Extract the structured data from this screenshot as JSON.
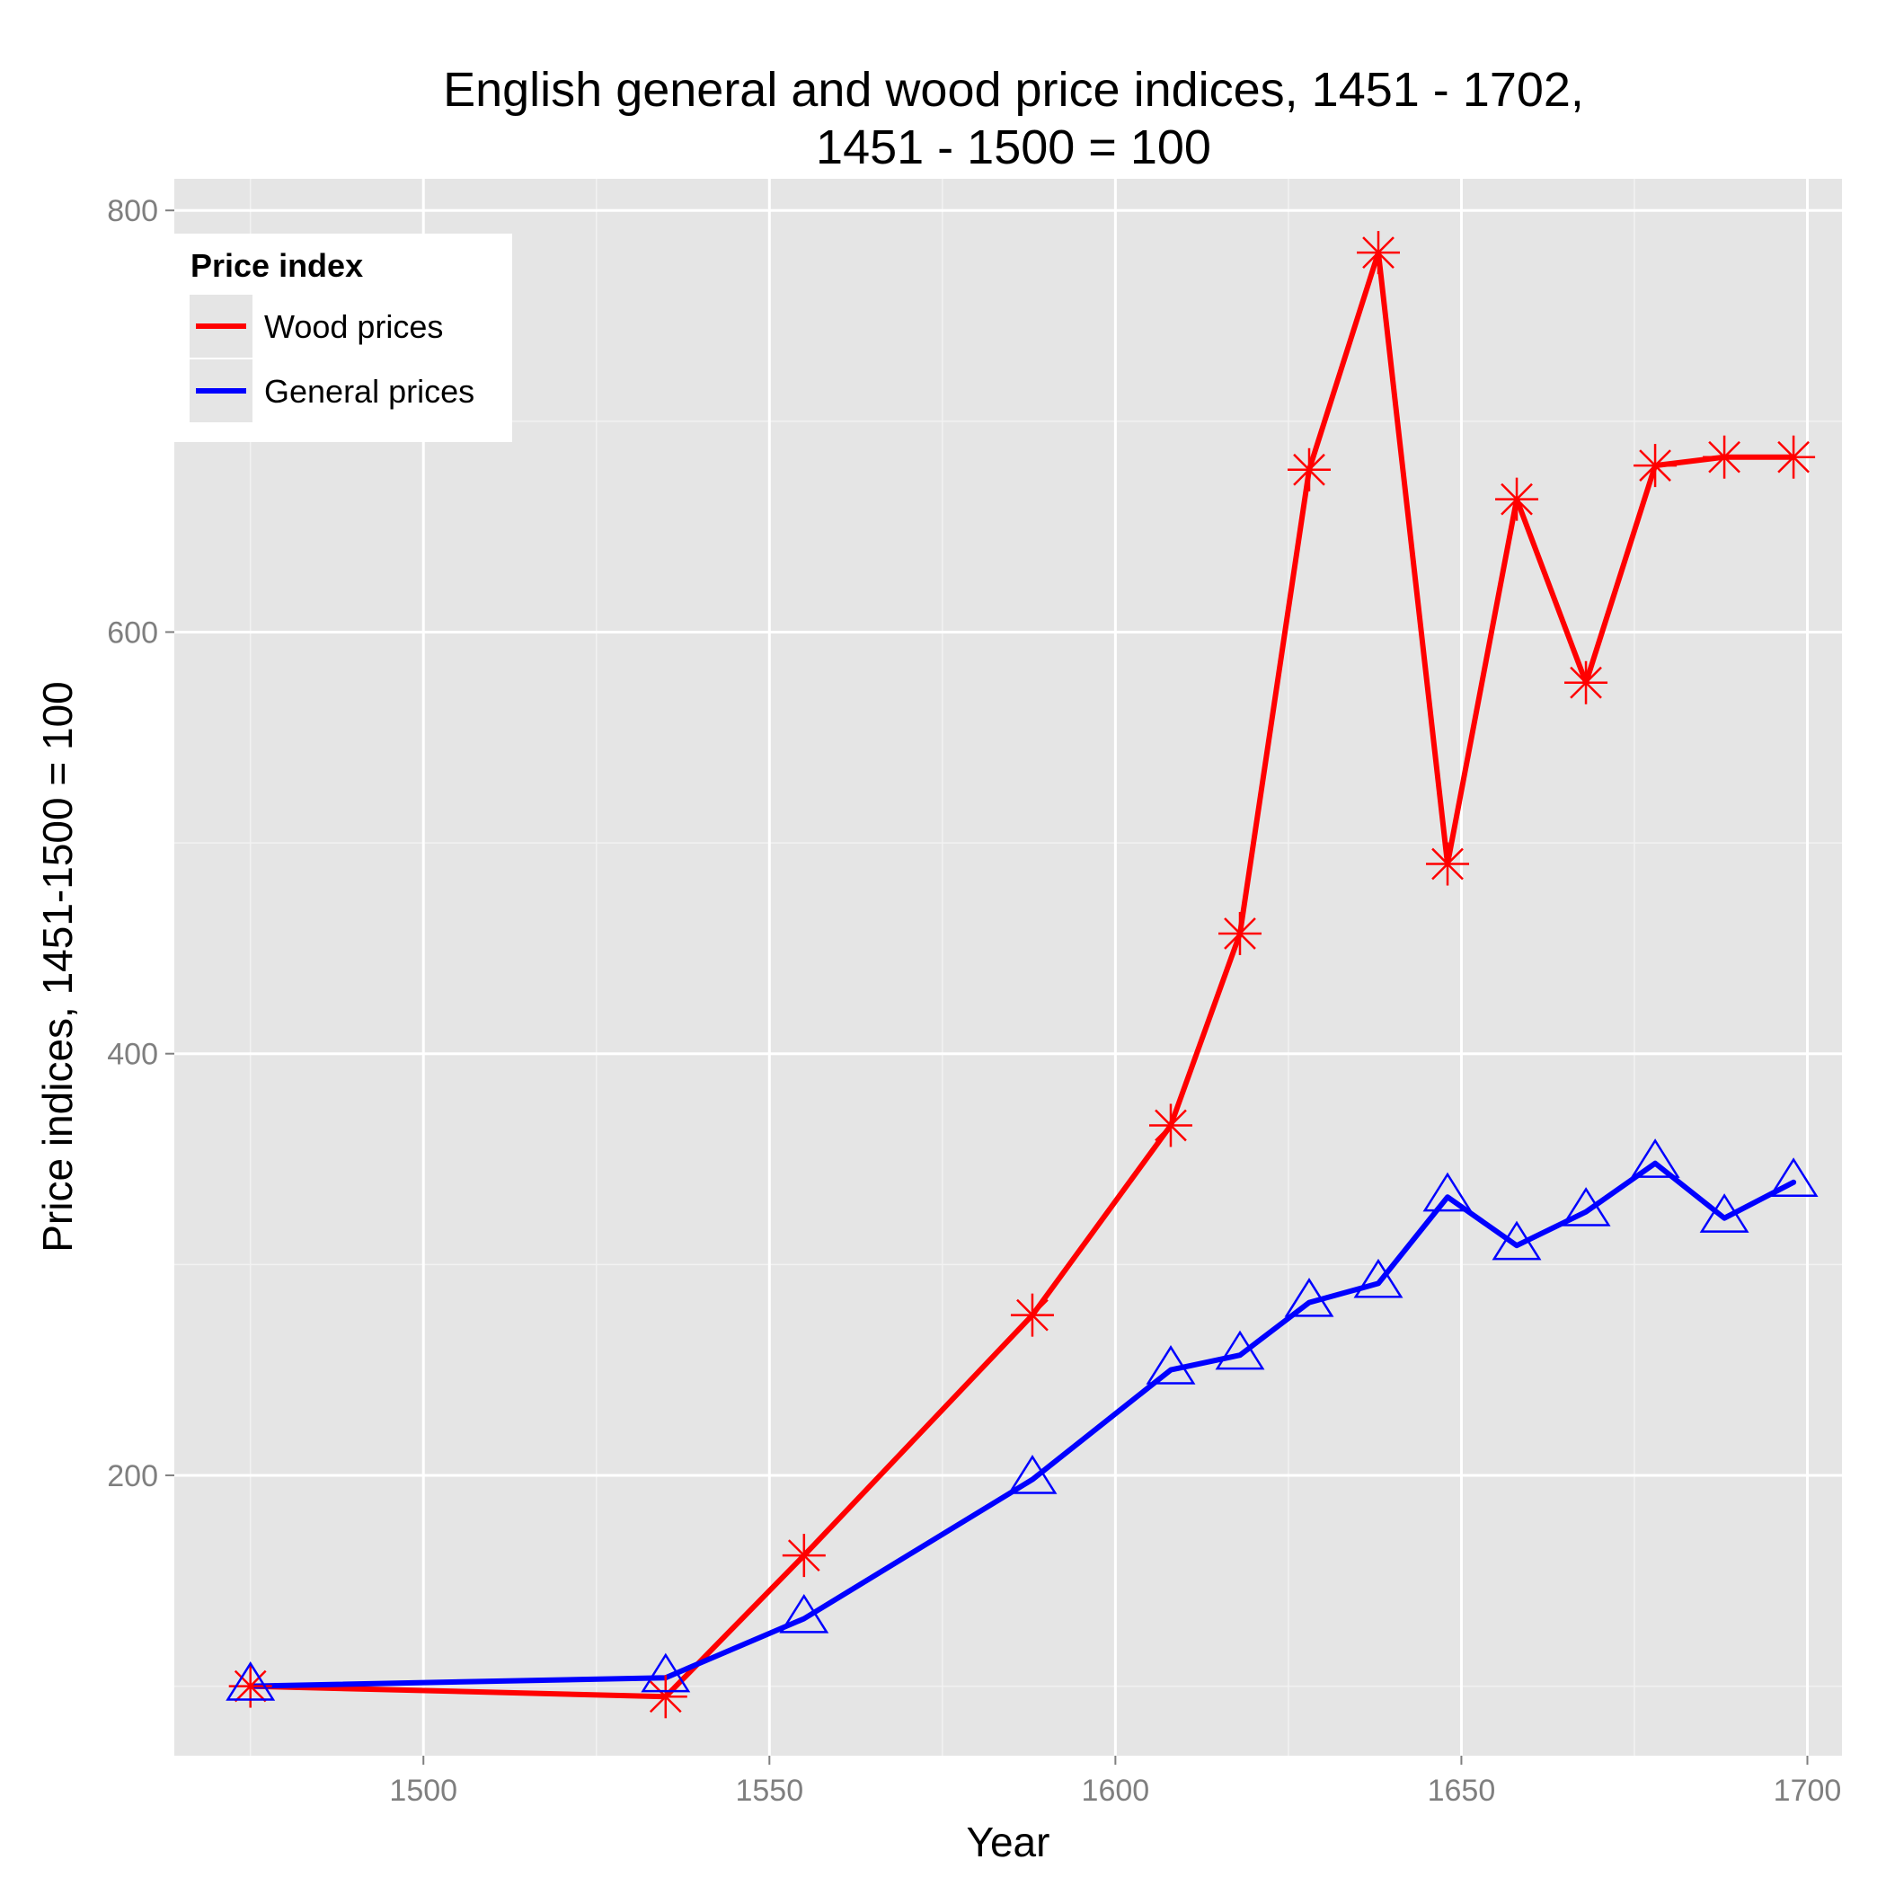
{
  "chart_data": {
    "type": "line",
    "title": [
      "English general and wood price indices, 1451 - 1702,",
      "1451 - 1500 = 100"
    ],
    "xlabel": "Year",
    "ylabel": "Price indices, 1451-1500 = 100",
    "xlim": [
      1464,
      1705
    ],
    "ylim": [
      67,
      815
    ],
    "x_ticks": [
      1500,
      1550,
      1600,
      1650,
      1700
    ],
    "y_ticks": [
      200,
      400,
      600,
      800
    ],
    "grid": true,
    "legend": {
      "title": "Price index",
      "position": "top-left"
    },
    "series": [
      {
        "name": "Wood prices",
        "color": "#ff0000",
        "marker": "asterisk",
        "x": [
          1475,
          1535,
          1555,
          1588,
          1608,
          1618,
          1628,
          1638,
          1648,
          1658,
          1668,
          1678,
          1688,
          1698
        ],
        "values": [
          100,
          95,
          162,
          276,
          366,
          457,
          677,
          780,
          490,
          663,
          576,
          679,
          683,
          683
        ]
      },
      {
        "name": "General prices",
        "color": "#0000ff",
        "marker": "triangle",
        "x": [
          1475,
          1535,
          1555,
          1588,
          1608,
          1618,
          1628,
          1638,
          1648,
          1658,
          1668,
          1678,
          1688,
          1698
        ],
        "values": [
          100,
          104,
          132,
          198,
          250,
          257,
          282,
          291,
          332,
          309,
          325,
          348,
          322,
          339
        ]
      }
    ]
  }
}
